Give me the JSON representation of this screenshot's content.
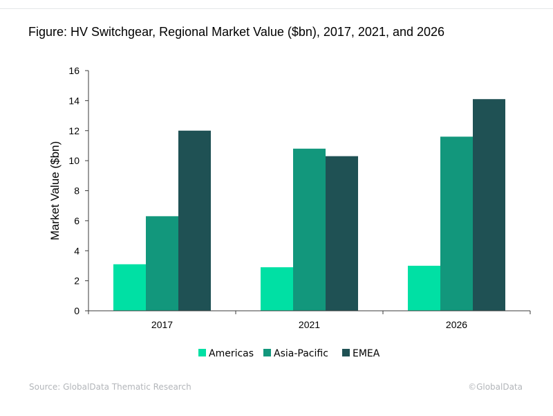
{
  "title": "Figure: HV Switchgear, Regional Market Value ($bn), 2017, 2021, and 2026",
  "footer": {
    "source": "Source: GlobalData Thematic Research",
    "copyright": "©GlobalData"
  },
  "chart_data": {
    "type": "bar",
    "categories": [
      "2017",
      "2021",
      "2026"
    ],
    "series": [
      {
        "name": "Americas",
        "color": "#00e0a4",
        "values": [
          3.1,
          2.9,
          3.0
        ]
      },
      {
        "name": "Asia-Pacific",
        "color": "#12977c",
        "values": [
          6.3,
          10.8,
          11.6
        ]
      },
      {
        "name": "EMEA",
        "color": "#1f5154",
        "values": [
          12.0,
          10.3,
          14.1
        ]
      }
    ],
    "ylabel": "Market Value ($bn)",
    "xlabel": "",
    "ylim": [
      0,
      16
    ],
    "yticks": [
      0,
      2,
      4,
      6,
      8,
      10,
      12,
      14,
      16
    ],
    "grid": false,
    "legend_position": "bottom"
  }
}
